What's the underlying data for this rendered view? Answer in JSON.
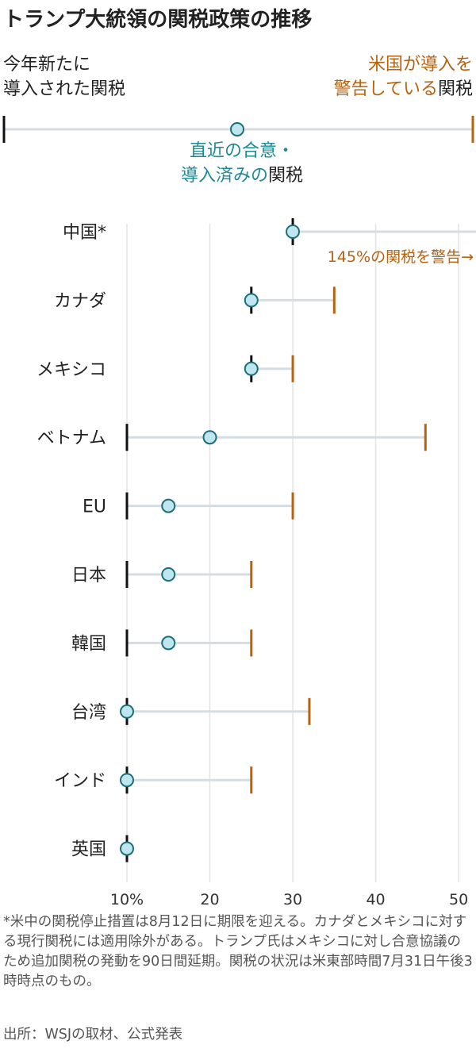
{
  "title": "トランプ大統領の関税政策の推移",
  "legend": {
    "new_label_line1": "今年新たに",
    "new_label_line2": "導入された関税",
    "threat_label_line1": "米国が導入を",
    "threat_label_line2_colored": "警告している",
    "threat_label_line2_plain": "関税",
    "recent_label_line1": "直近の合意・",
    "recent_label_line2_colored": "導入済みの",
    "recent_label_line2_plain": "関税"
  },
  "colors": {
    "new_tick": "#111111",
    "threat_tick": "#b7620f",
    "recent_dot_fill": "#bfe6ee",
    "recent_dot_stroke": "#1a6f78",
    "range_line": "#d5dde3",
    "grid": "#e3e3e3"
  },
  "chart_data": {
    "type": "dot-range",
    "xlim": [
      10,
      52
    ],
    "x_ticks": [
      10,
      20,
      30,
      40,
      50
    ],
    "x_tick_labels": [
      "10%",
      "20",
      "30",
      "40",
      "50"
    ],
    "grid": true,
    "annotation": "145%の関税を警告→",
    "rows": [
      {
        "country": "中国*",
        "new": 30,
        "recent": 30,
        "threat": 145
      },
      {
        "country": "カナダ",
        "new": 25,
        "recent": 25,
        "threat": 35
      },
      {
        "country": "メキシコ",
        "new": 25,
        "recent": 25,
        "threat": 30
      },
      {
        "country": "ベトナム",
        "new": 10,
        "recent": 20,
        "threat": 46
      },
      {
        "country": "EU",
        "new": 10,
        "recent": 15,
        "threat": 30
      },
      {
        "country": "日本",
        "new": 10,
        "recent": 15,
        "threat": 25
      },
      {
        "country": "韓国",
        "new": 10,
        "recent": 15,
        "threat": 25
      },
      {
        "country": "台湾",
        "new": 10,
        "recent": 10,
        "threat": 32
      },
      {
        "country": "インド",
        "new": 10,
        "recent": 10,
        "threat": 25
      },
      {
        "country": "英国",
        "new": 10,
        "recent": 10,
        "threat": null
      }
    ]
  },
  "footnote": "*米中の関税停止措置は8月12日に期限を迎える。カナダとメキシコに対する現行関税には適用除外がある。トランプ氏はメキシコに対し合意協議のため追加関税の発動を90日間延期。関税の状況は米東部時間7月31日午後3時時点のもの。",
  "source": "出所：WSJの取材、公式発表"
}
